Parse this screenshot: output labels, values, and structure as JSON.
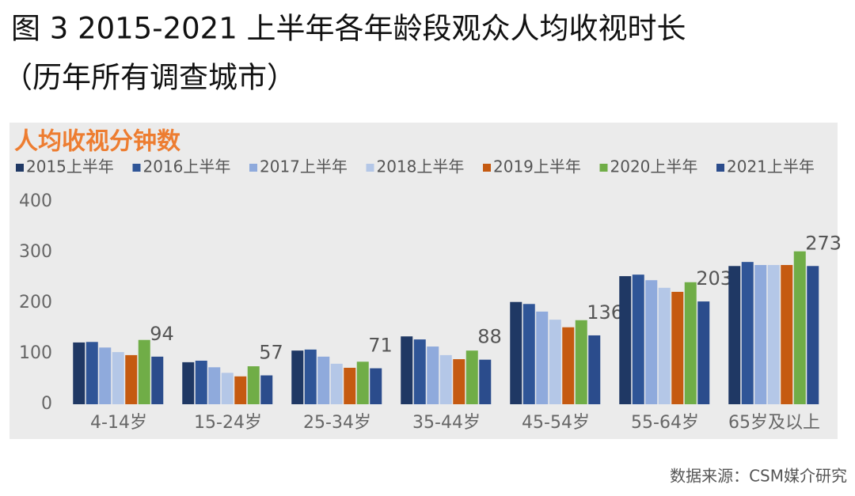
{
  "chart_data": {
    "type": "bar",
    "title": "图 3 2015-2021 上半年各年龄段观众人均收视时长",
    "subtitle": "（历年所有调查城市）",
    "y_label": "人均收视分钟数",
    "source": "数据来源：CSM媒介研究",
    "categories": [
      "4-14岁",
      "15-24岁",
      "25-34岁",
      "35-44岁",
      "45-54岁",
      "55-64岁",
      "65岁及以上"
    ],
    "series": [
      {
        "name": "2015上半年",
        "color": "#1f3864",
        "values": [
          122,
          83,
          106,
          134,
          202,
          253,
          273
        ]
      },
      {
        "name": "2016上半年",
        "color": "#2f5597",
        "values": [
          123,
          86,
          108,
          128,
          198,
          256,
          281
        ]
      },
      {
        "name": "2017上半年",
        "color": "#8faadc",
        "values": [
          112,
          73,
          94,
          114,
          183,
          245,
          275
        ]
      },
      {
        "name": "2018上半年",
        "color": "#b4c7e7",
        "values": [
          103,
          62,
          80,
          97,
          167,
          230,
          275
        ]
      },
      {
        "name": "2019上半年",
        "color": "#c55a11",
        "values": [
          97,
          55,
          72,
          89,
          152,
          222,
          275
        ]
      },
      {
        "name": "2020上半年",
        "color": "#70ad47",
        "values": [
          127,
          75,
          84,
          106,
          166,
          241,
          302
        ]
      },
      {
        "name": "2021上半年",
        "color": "#2b4c8c",
        "values": [
          94,
          57,
          71,
          88,
          136,
          203,
          273
        ],
        "data_labels": true
      }
    ],
    "ylim": [
      0,
      400
    ],
    "yticks": [
      0,
      100,
      200,
      300,
      400
    ],
    "grid": false
  }
}
